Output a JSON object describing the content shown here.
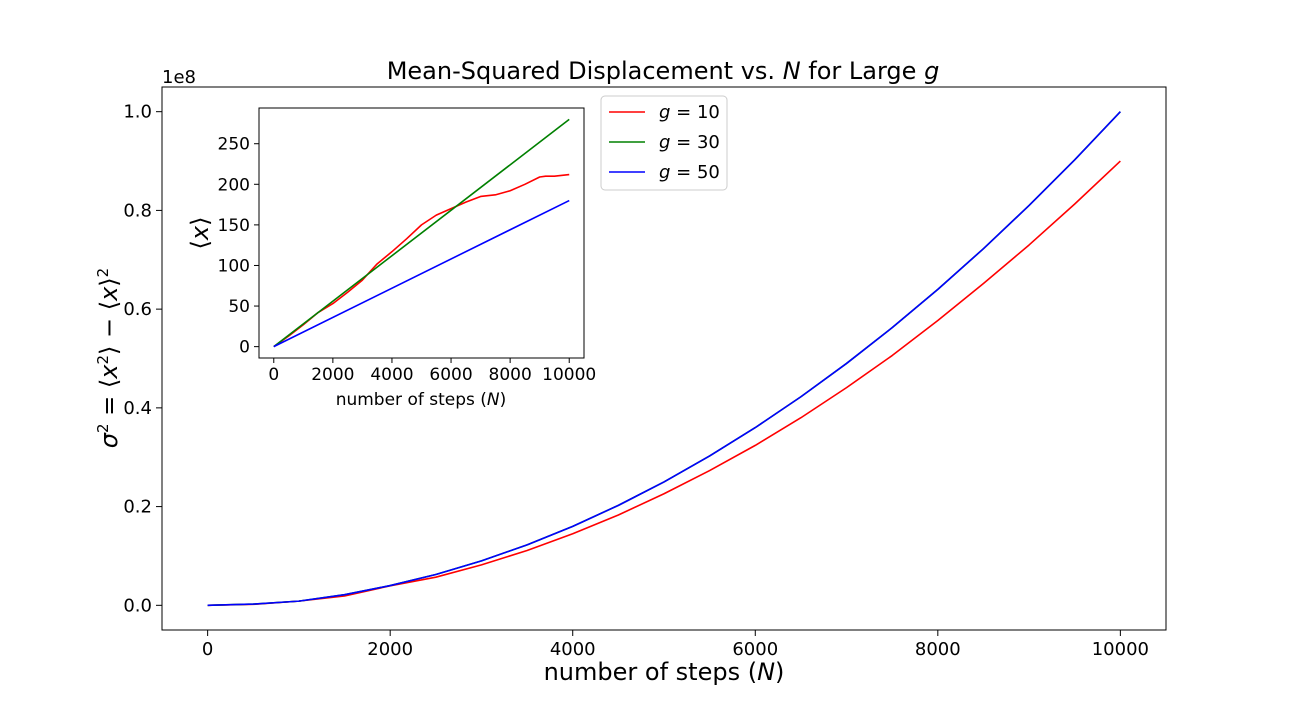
{
  "chart_data": [
    {
      "id": "main",
      "type": "line",
      "title": "Mean-Squared Displacement vs. N for Large g",
      "title_parts": [
        "Mean-Squared Displacement vs. ",
        "N",
        " for Large ",
        "g"
      ],
      "xlabel": "number of steps (N)",
      "xlabel_parts": [
        "number of steps (",
        "N",
        ")"
      ],
      "ylabel": "σ² = ⟨x²⟩ − ⟨x⟩²",
      "y_offset_label": "1e8",
      "xlim": [
        -500,
        10500
      ],
      "ylim": [
        -0.05,
        1.05
      ],
      "x_ticks": [
        0,
        2000,
        4000,
        6000,
        8000,
        10000
      ],
      "x_tick_labels": [
        "0",
        "2000",
        "4000",
        "6000",
        "8000",
        "10000"
      ],
      "y_ticks": [
        0.0,
        0.2,
        0.4,
        0.6,
        0.8,
        1.0
      ],
      "y_tick_labels": [
        "0.0",
        "0.2",
        "0.4",
        "0.6",
        "0.8",
        "1.0"
      ],
      "grid": false,
      "series": [
        {
          "name": "g = 10",
          "color": "#ff0000",
          "x": [
            0,
            500,
            1000,
            1500,
            2000,
            2500,
            3000,
            3500,
            4000,
            4500,
            5000,
            5500,
            6000,
            6500,
            7000,
            7500,
            8000,
            8500,
            9000,
            9500,
            10000
          ],
          "y": [
            0.0,
            0.002,
            0.0085,
            0.019,
            0.0395,
            0.057,
            0.082,
            0.111,
            0.145,
            0.183,
            0.226,
            0.273,
            0.324,
            0.38,
            0.441,
            0.506,
            0.577,
            0.652,
            0.73,
            0.813,
            0.9
          ]
        },
        {
          "name": "g = 30",
          "color": "#008000",
          "x": [
            0,
            500,
            1000,
            1500,
            2000,
            2500,
            3000,
            3500,
            4000,
            4500,
            5000,
            5500,
            6000,
            6500,
            7000,
            7500,
            8000,
            8500,
            9000,
            9500,
            10000
          ],
          "y": [
            0.0,
            0.0025,
            0.0085,
            0.0215,
            0.04,
            0.0625,
            0.09,
            0.1225,
            0.16,
            0.2025,
            0.25,
            0.3025,
            0.36,
            0.4225,
            0.49,
            0.5625,
            0.64,
            0.7225,
            0.81,
            0.9025,
            1.0
          ]
        },
        {
          "name": "g = 50",
          "color": "#0000ff",
          "x": [
            0,
            500,
            1000,
            1500,
            2000,
            2500,
            3000,
            3500,
            4000,
            4500,
            5000,
            5500,
            6000,
            6500,
            7000,
            7500,
            8000,
            8500,
            9000,
            9500,
            10000
          ],
          "y": [
            0.0,
            0.0025,
            0.0085,
            0.0215,
            0.04,
            0.0625,
            0.09,
            0.1225,
            0.16,
            0.2025,
            0.25,
            0.3025,
            0.36,
            0.4225,
            0.49,
            0.5625,
            0.64,
            0.7225,
            0.81,
            0.9025,
            1.0
          ]
        }
      ],
      "legend": {
        "placement": "top-center",
        "entries": [
          {
            "label": "g = 10",
            "label_parts": [
              "g",
              " = 10"
            ],
            "color": "#ff0000"
          },
          {
            "label": "g = 30",
            "label_parts": [
              "g",
              " = 30"
            ],
            "color": "#008000"
          },
          {
            "label": "g = 50",
            "label_parts": [
              "g",
              " = 50"
            ],
            "color": "#0000ff"
          }
        ]
      }
    },
    {
      "id": "inset",
      "type": "line",
      "title": "",
      "xlabel": "number of steps (N)",
      "xlabel_parts": [
        "number of steps (",
        "N",
        ")"
      ],
      "ylabel": "⟨x⟩",
      "xlim": [
        -500,
        10500
      ],
      "ylim": [
        -14,
        294
      ],
      "x_ticks": [
        0,
        2000,
        4000,
        6000,
        8000,
        10000
      ],
      "x_tick_labels": [
        "0",
        "2000",
        "4000",
        "6000",
        "8000",
        "10000"
      ],
      "y_ticks": [
        0,
        50,
        100,
        150,
        200,
        250
      ],
      "y_tick_labels": [
        "0",
        "50",
        "100",
        "150",
        "200",
        "250"
      ],
      "grid": false,
      "series": [
        {
          "name": "g = 10",
          "color": "#ff0000",
          "x": [
            0,
            500,
            1000,
            1500,
            2000,
            2500,
            3000,
            3500,
            4000,
            4500,
            5000,
            5500,
            6000,
            6500,
            7000,
            7500,
            8000,
            8500,
            9000,
            9200,
            9500,
            10000
          ],
          "y": [
            0,
            13,
            27,
            42,
            53,
            67,
            82,
            102,
            117,
            133,
            150,
            162,
            170,
            178,
            185,
            187,
            192,
            200,
            209,
            210,
            210,
            212
          ]
        },
        {
          "name": "g = 30",
          "color": "#008000",
          "x": [
            0,
            10000
          ],
          "y": [
            0,
            280
          ]
        },
        {
          "name": "g = 50",
          "color": "#0000ff",
          "x": [
            0,
            10000
          ],
          "y": [
            0,
            180
          ]
        }
      ]
    }
  ]
}
